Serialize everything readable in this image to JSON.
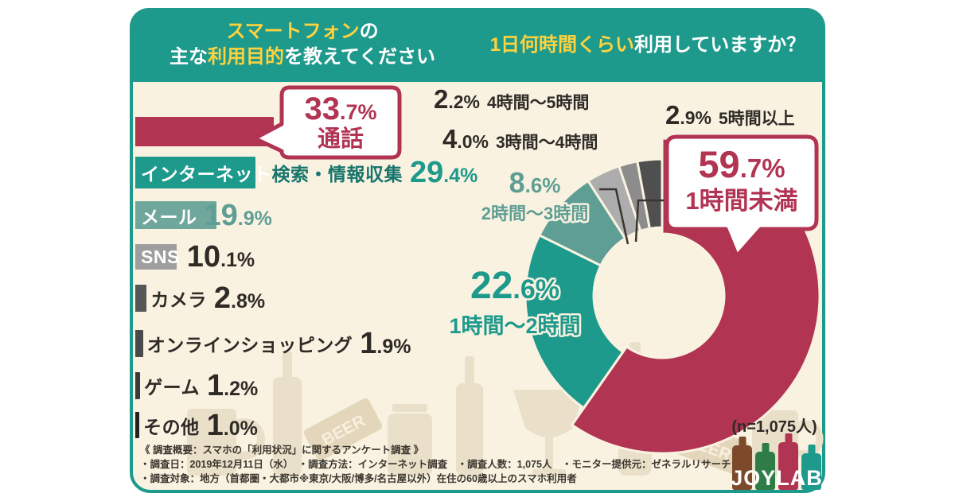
{
  "header": {
    "left_title": {
      "line1": [
        {
          "t": "スマートフォン",
          "c": "y"
        },
        {
          "t": "の",
          "c": "w"
        }
      ],
      "line2": [
        {
          "t": "主な",
          "c": "w"
        },
        {
          "t": "利用目的",
          "c": "y"
        },
        {
          "t": "を教えてください",
          "c": "w"
        }
      ]
    },
    "right_title": [
      {
        "t": "1日何時間くらい",
        "c": "y"
      },
      {
        "t": "利用していますか？",
        "c": "w"
      }
    ]
  },
  "chart_data": [
    {
      "type": "bar",
      "title": "スマートフォンの主な利用目的を教えてください",
      "unit": "%",
      "orientation": "horizontal",
      "items": [
        {
          "label": "通話",
          "value": 33.7,
          "bar_color": "#B13452",
          "label_on": "",
          "label_off": "",
          "callout": true
        },
        {
          "label": "インターネット検索・情報収集",
          "value": 29.4,
          "bar_color": "#1E9A8C",
          "label_on": "インターネット",
          "label_off": "検索・情報収集",
          "label_off_color": "#17756B",
          "value_color": "#1E9A8C"
        },
        {
          "label": "メール",
          "value": 19.9,
          "bar_color": "#6FA79D",
          "label_on": "メール",
          "label_off": "",
          "value_color": "#5F9E94"
        },
        {
          "label": "SNS",
          "value": 10.1,
          "bar_color": "#9E9E9E",
          "label_on": "SNS",
          "label_off": "",
          "value_color": "#2E2A26"
        },
        {
          "label": "カメラ",
          "value": 2.8,
          "bar_color": "#565656",
          "label_on": "",
          "label_off": "カメラ",
          "value_color": "#2E2A26"
        },
        {
          "label": "オンラインショッピング",
          "value": 1.9,
          "bar_color": "#4A4A4A",
          "label_on": "",
          "label_off": "オンラインショッピング",
          "value_color": "#2E2A26"
        },
        {
          "label": "ゲーム",
          "value": 1.2,
          "bar_color": "#3A3A3A",
          "label_on": "",
          "label_off": "ゲーム",
          "value_color": "#2E2A26"
        },
        {
          "label": "その他",
          "value": 1.0,
          "bar_color": "#222222",
          "label_on": "",
          "label_off": "その他",
          "value_color": "#2E2A26"
        }
      ]
    },
    {
      "type": "pie",
      "subtype": "donut",
      "title": "1日何時間くらい利用していますか？",
      "n_label": "(n=1,075人)",
      "slices": [
        {
          "label": "1時間未満",
          "value": 59.7,
          "color": "#B13452",
          "emphasis": true
        },
        {
          "label": "1時間〜2時間",
          "value": 22.6,
          "color": "#1E9A8C"
        },
        {
          "label": "2時間〜3時間",
          "value": 8.6,
          "color": "#5F9E94"
        },
        {
          "label": "3時間〜4時間",
          "value": 4.0,
          "color": "#ADADAD"
        },
        {
          "label": "4時間〜5時間",
          "value": 2.2,
          "color": "#8C8C8C"
        },
        {
          "label": "5時間以上",
          "value": 2.9,
          "color": "#4F4F4F"
        }
      ]
    }
  ],
  "footer": {
    "line1": "《 調査概要：スマホの「利用状況」に関するアンケート調査 》",
    "line2": "・調査日：2019年12月11日（水）　・調査方法：インターネット調査　・調査人数：1,075人　・モニター提供元：ゼネラルリサーチ",
    "line3": "・調査対象：地方（首都圏・大都市※東京/大阪/博多/名古屋以外）在住の60歳以上のスマホ利用者"
  },
  "watermark": {
    "label": "BEER"
  },
  "logo": {
    "name": "JOYLAB",
    "bottle_colors": [
      "#7C4A2B",
      "#2E7D46",
      "#B13452",
      "#1E9A8C"
    ],
    "bottle_heights": [
      56,
      48,
      60,
      46
    ]
  },
  "colors": {
    "teal": "#1E9A8C",
    "crimson": "#B13452",
    "cream": "#F9F2E1",
    "yellow": "#FFD23E",
    "dark_text": "#2E2A26"
  }
}
